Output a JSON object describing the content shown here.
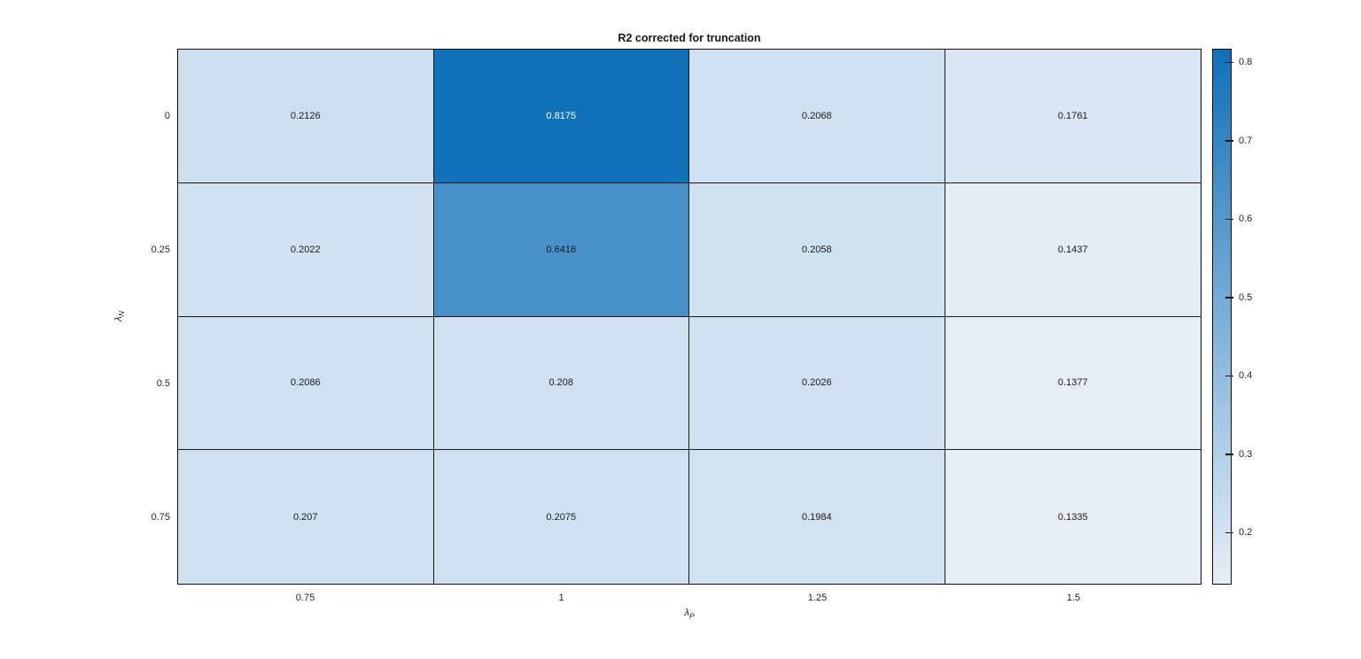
{
  "figure": {
    "background": "#ffffff"
  },
  "chart_data": {
    "type": "heatmap",
    "title": "R2 corrected for truncation",
    "xlabel": "λP",
    "ylabel": "λN",
    "xlabel_base": "λ",
    "xlabel_sub": "P",
    "ylabel_base": "λ",
    "ylabel_sub": "N",
    "x_categories": [
      "0.75",
      "1",
      "1.25",
      "1.5"
    ],
    "y_categories": [
      "0",
      "0.25",
      "0.5",
      "0.75"
    ],
    "values": [
      [
        0.2126,
        0.8175,
        0.2068,
        0.1761
      ],
      [
        0.2022,
        0.6416,
        0.2058,
        0.1437
      ],
      [
        0.2086,
        0.208,
        0.2026,
        0.1377
      ],
      [
        0.207,
        0.2075,
        0.1984,
        0.1335
      ]
    ],
    "cell_labels": [
      [
        "0.2126",
        "0.8175",
        "0.2068",
        "0.1761"
      ],
      [
        "0.2022",
        "0.6416",
        "0.2058",
        "0.1437"
      ],
      [
        "0.2086",
        "0.208",
        "0.2026",
        "0.1377"
      ],
      [
        "0.207",
        "0.2075",
        "0.1984",
        "0.1335"
      ]
    ],
    "color_limits": [
      0.1335,
      0.8175
    ],
    "colormap": {
      "min_color": "#e7eef7",
      "max_color": "#1070b8"
    },
    "white_text_value_threshold": 0.73,
    "colorbar_ticks": [
      "0.2",
      "0.3",
      "0.4",
      "0.5",
      "0.6",
      "0.7",
      "0.8"
    ],
    "grid_color": "#1a1a1a",
    "legend_position": "right-colorbar",
    "grid": "on"
  }
}
